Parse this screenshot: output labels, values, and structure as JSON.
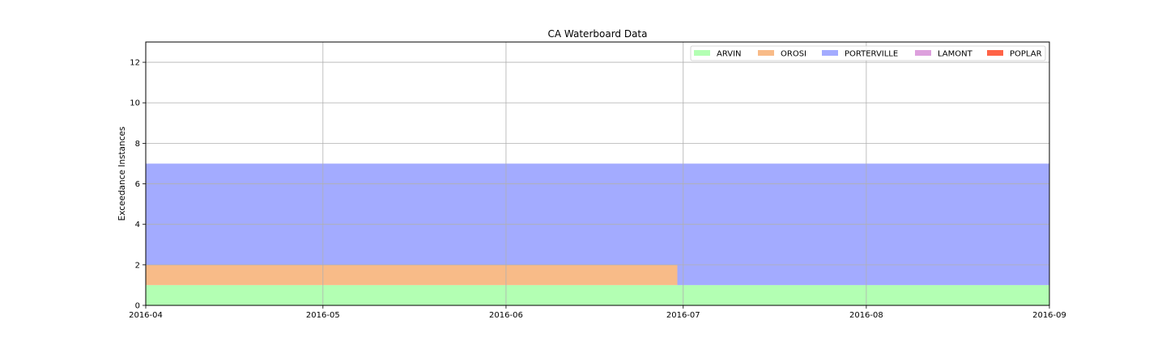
{
  "chart_data": {
    "type": "area",
    "title": "CA Waterboard Data",
    "xlabel": "",
    "ylabel": "Exceedance Instances",
    "x_type": "date",
    "xlim": [
      "2016-04-01",
      "2016-09-01"
    ],
    "ylim": [
      0,
      13
    ],
    "x_ticks": [
      "2016-04",
      "2016-05",
      "2016-06",
      "2016-07",
      "2016-08",
      "2016-09"
    ],
    "y_ticks": [
      0,
      2,
      4,
      6,
      8,
      10,
      12
    ],
    "grid": true,
    "stacked": true,
    "step": "post",
    "legend_position": "top-right",
    "legend_columns": 5,
    "x": [
      "2016-04-01",
      "2016-06-30",
      "2016-09-01"
    ],
    "series": [
      {
        "name": "ARVIN",
        "color": "#b3ffb3",
        "values": [
          1,
          1,
          1
        ]
      },
      {
        "name": "OROSI",
        "color": "#f8bb88",
        "values": [
          1,
          0,
          0
        ]
      },
      {
        "name": "PORTERVILLE",
        "color": "#a3abff",
        "values": [
          5,
          6,
          6
        ]
      },
      {
        "name": "LAMONT",
        "color": "#dda0dd",
        "values": [
          0,
          0,
          0
        ]
      },
      {
        "name": "POPLAR",
        "color": "#ff6347",
        "values": [
          0,
          0,
          0
        ]
      }
    ]
  }
}
